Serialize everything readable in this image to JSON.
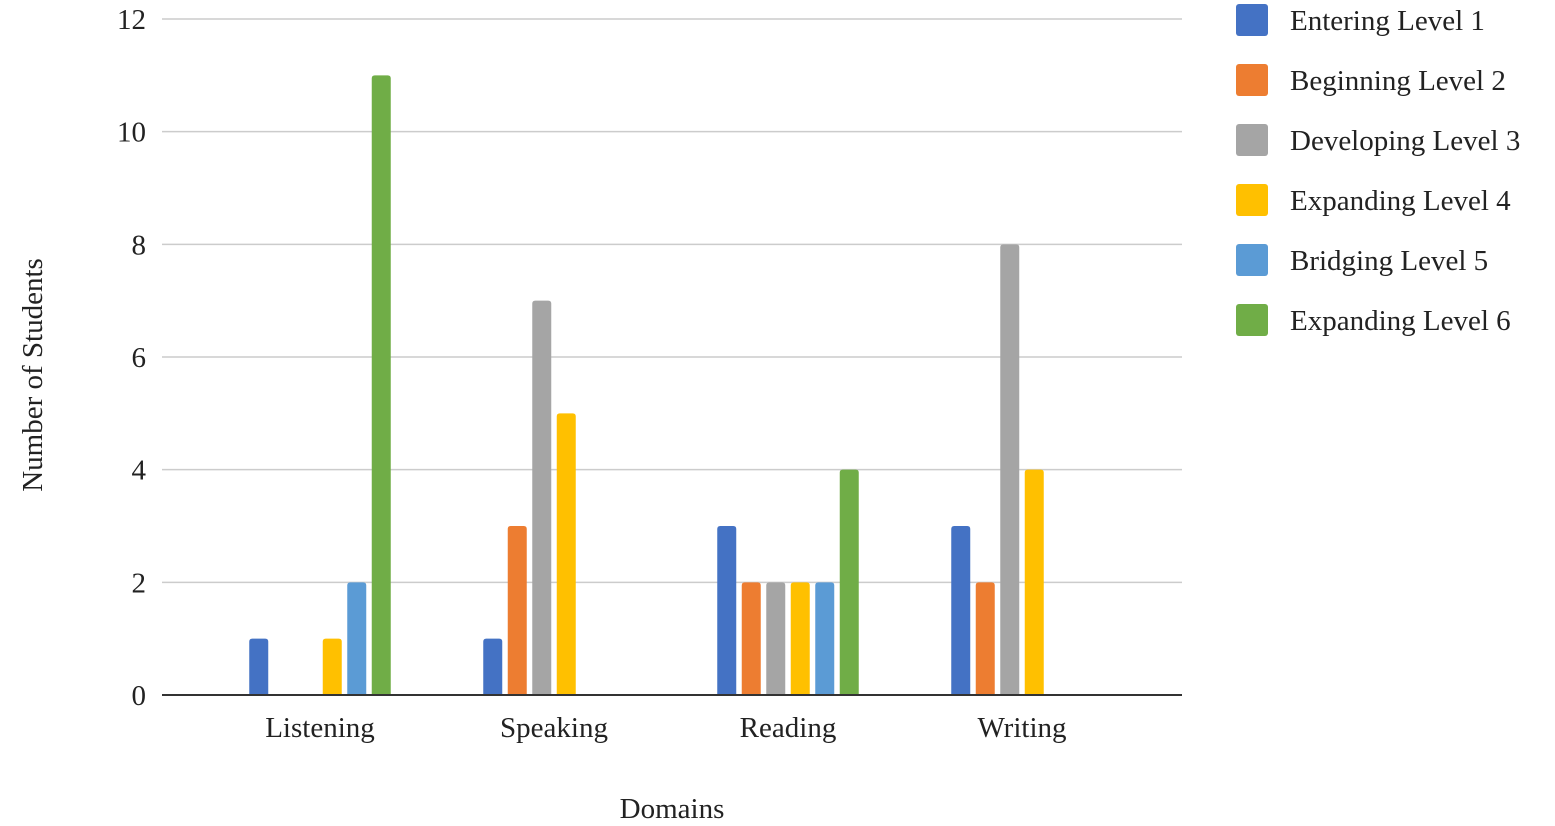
{
  "chart_data": {
    "type": "bar",
    "title": "",
    "xlabel": "Domains",
    "ylabel": "Number of Students",
    "ylim": [
      0,
      12
    ],
    "yticks": [
      0,
      2,
      4,
      6,
      8,
      10,
      12
    ],
    "grid": true,
    "legend_position": "right",
    "categories": [
      "Listening",
      "Speaking",
      "Reading",
      "Writing"
    ],
    "series": [
      {
        "name": "Entering Level 1",
        "color": "#4472C4",
        "values": [
          1,
          1,
          3,
          3
        ]
      },
      {
        "name": "Beginning Level 2",
        "color": "#ED7D31",
        "values": [
          0,
          3,
          2,
          2
        ]
      },
      {
        "name": "Developing Level 3",
        "color": "#A5A5A5",
        "values": [
          0,
          7,
          2,
          8
        ]
      },
      {
        "name": "Expanding Level 4",
        "color": "#FFC000",
        "values": [
          1,
          5,
          2,
          4
        ]
      },
      {
        "name": "Bridging Level 5",
        "color": "#5B9BD5",
        "values": [
          2,
          0,
          2,
          0
        ]
      },
      {
        "name": "Expanding Level 6",
        "color": "#70AD47",
        "values": [
          11,
          0,
          4,
          0
        ]
      }
    ]
  }
}
